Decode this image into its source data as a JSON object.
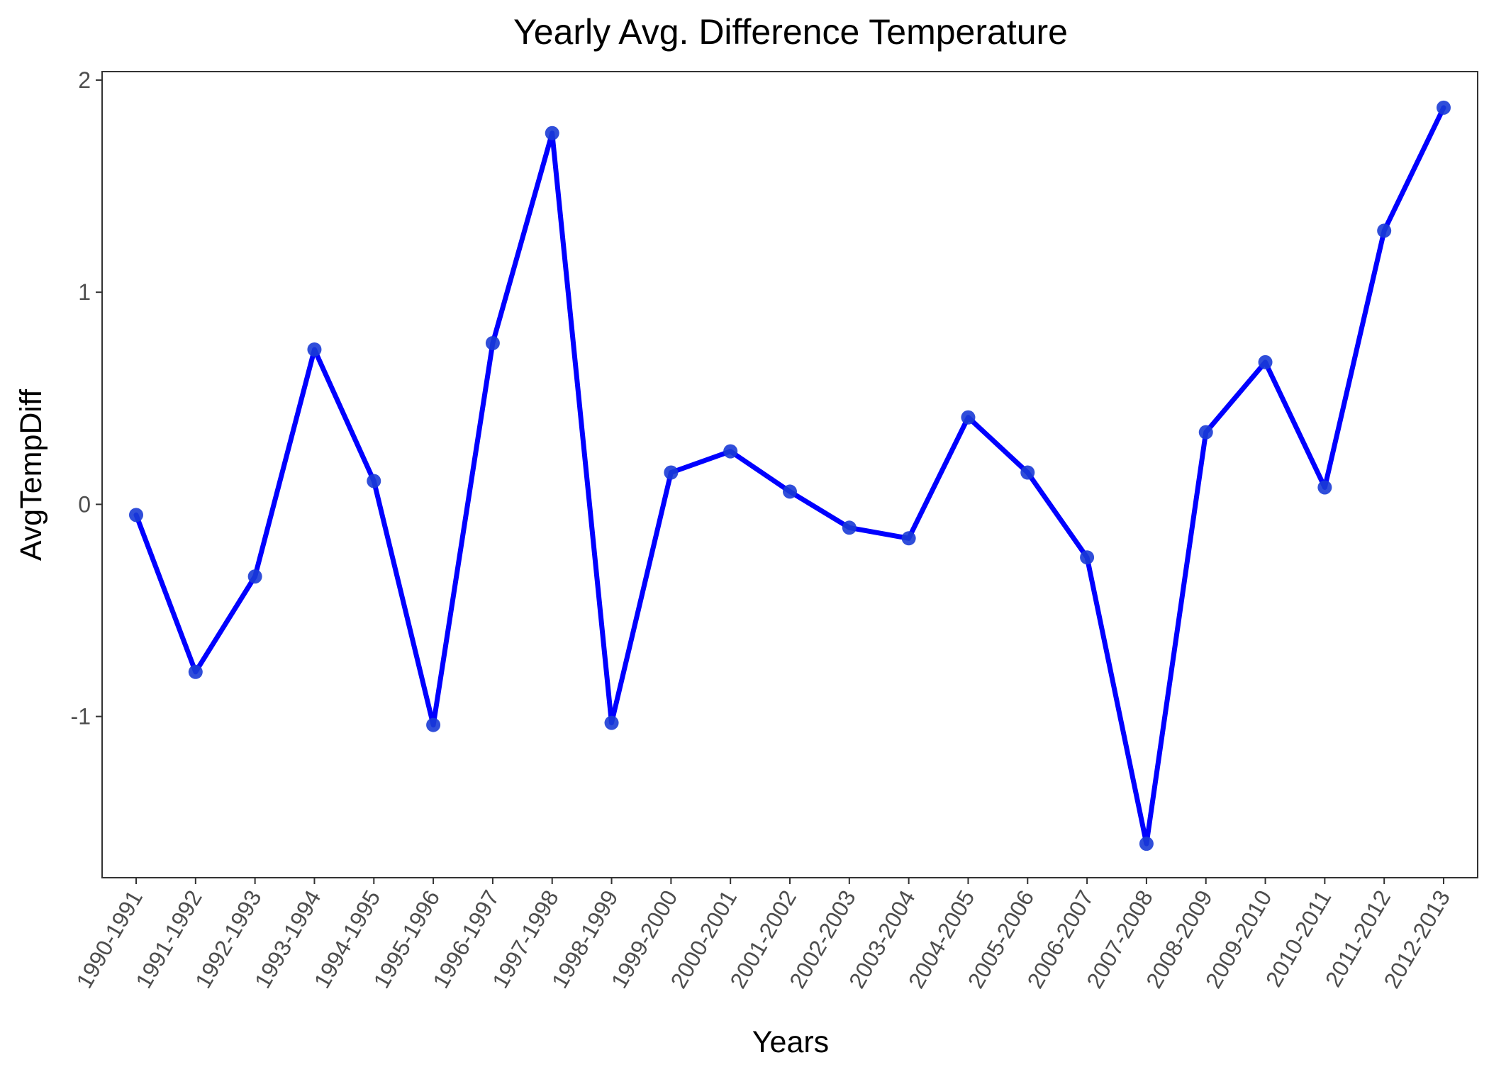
{
  "chart_data": {
    "type": "line",
    "title": "Yearly Avg. Difference Temperature",
    "xlabel": "Years",
    "ylabel": "AvgTempDiff",
    "categories": [
      "1990-1991",
      "1991-1992",
      "1992-1993",
      "1993-1994",
      "1994-1995",
      "1995-1996",
      "1996-1997",
      "1997-1998",
      "1998-1999",
      "1999-2000",
      "2000-2001",
      "2001-2002",
      "2002-2003",
      "2003-2004",
      "2004-2005",
      "2005-2006",
      "2006-2007",
      "2007-2008",
      "2008-2009",
      "2009-2010",
      "2010-2011",
      "2011-2012",
      "2012-2013"
    ],
    "series": [
      {
        "values": [
          -0.05,
          -0.79,
          -0.34,
          0.73,
          0.11,
          -1.04,
          0.76,
          1.75,
          -1.03,
          0.15,
          0.25,
          0.06,
          -0.11,
          -0.16,
          0.41,
          0.15,
          -0.25,
          -1.6,
          0.34,
          0.67,
          0.08,
          1.29,
          1.87
        ],
        "line_color": "#0000ff",
        "marker_color": "#1a3bd6"
      }
    ],
    "yticks": [
      -1,
      0,
      1,
      2
    ],
    "ylim": [
      -1.76,
      2.04
    ],
    "grid": false,
    "legend": "none"
  }
}
